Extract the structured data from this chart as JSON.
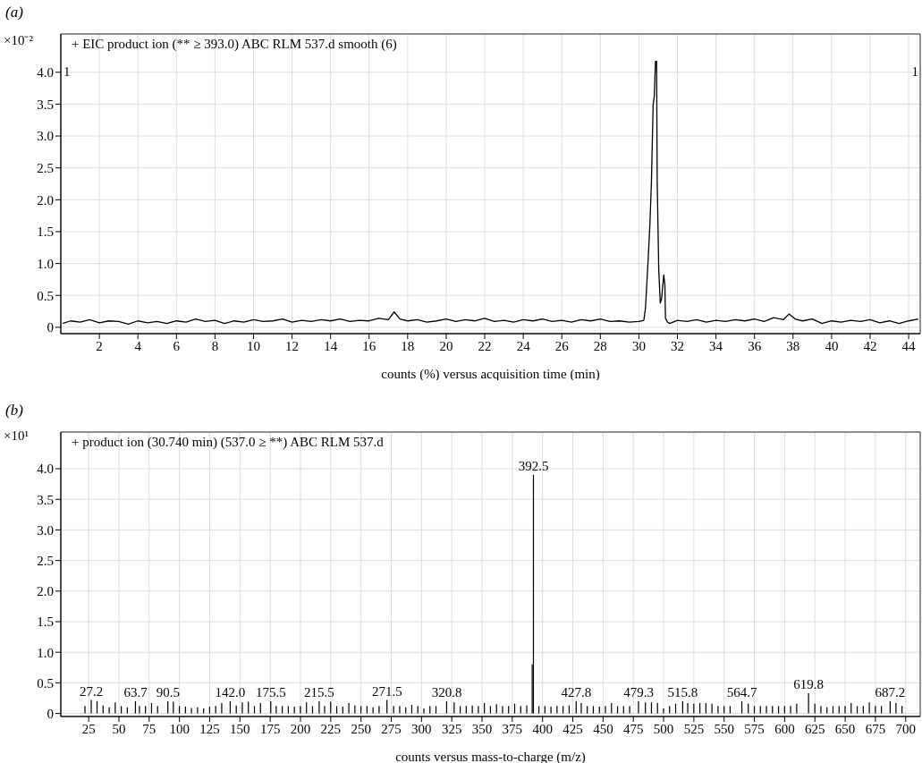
{
  "chart_data": [
    {
      "type": "line",
      "title": "(a)",
      "subtitle": "+ EIC product ion (** ≥ 393.0) ABC RLM 537.d smooth (6)",
      "xlabel": "counts (%) versus acquisition time (min)",
      "ylabel": "×10⁻²",
      "color": "#000000",
      "x": [
        0.1,
        0.5,
        1.0,
        1.5,
        2.0,
        2.5,
        3.0,
        3.5,
        4.0,
        4.5,
        5.0,
        5.5,
        6.0,
        6.5,
        7.0,
        7.5,
        8.0,
        8.5,
        9.0,
        9.5,
        10.0,
        10.5,
        11.0,
        11.5,
        12.0,
        12.5,
        13.0,
        13.5,
        14.0,
        14.5,
        15.0,
        15.5,
        16.0,
        16.5,
        17.0,
        17.3,
        17.6,
        18.0,
        18.5,
        19.0,
        19.5,
        20.0,
        20.5,
        21.0,
        21.5,
        22.0,
        22.5,
        23.0,
        23.5,
        24.0,
        24.5,
        25.0,
        25.5,
        26.0,
        26.5,
        27.0,
        27.5,
        28.0,
        28.5,
        29.0,
        29.5,
        30.0,
        30.26,
        30.34,
        30.46,
        30.57,
        30.65,
        30.74,
        30.8,
        30.86,
        30.92,
        30.95,
        31.03,
        31.11,
        31.18,
        31.29,
        31.35,
        31.38,
        31.49,
        31.6,
        32.0,
        32.5,
        33.0,
        33.5,
        34.0,
        34.5,
        35.0,
        35.5,
        36.0,
        36.5,
        37.0,
        37.5,
        37.8,
        38.1,
        38.5,
        39.0,
        39.5,
        40.0,
        40.5,
        41.0,
        41.5,
        42.0,
        42.5,
        43.0,
        43.5,
        44.0,
        44.5
      ],
      "values": [
        0.06,
        0.1,
        0.08,
        0.12,
        0.07,
        0.1,
        0.09,
        0.05,
        0.1,
        0.07,
        0.09,
        0.06,
        0.1,
        0.08,
        0.13,
        0.09,
        0.11,
        0.06,
        0.1,
        0.08,
        0.12,
        0.09,
        0.1,
        0.13,
        0.08,
        0.11,
        0.09,
        0.12,
        0.1,
        0.13,
        0.09,
        0.11,
        0.1,
        0.14,
        0.12,
        0.24,
        0.13,
        0.1,
        0.12,
        0.08,
        0.1,
        0.13,
        0.09,
        0.12,
        0.1,
        0.14,
        0.09,
        0.11,
        0.08,
        0.12,
        0.1,
        0.13,
        0.09,
        0.11,
        0.08,
        0.12,
        0.1,
        0.13,
        0.09,
        0.1,
        0.08,
        0.09,
        0.11,
        0.3,
        0.94,
        1.6,
        2.27,
        3.49,
        3.63,
        4.17,
        4.17,
        2.32,
        0.91,
        0.38,
        0.45,
        0.82,
        0.67,
        0.14,
        0.08,
        0.06,
        0.11,
        0.09,
        0.12,
        0.08,
        0.11,
        0.09,
        0.12,
        0.1,
        0.13,
        0.09,
        0.15,
        0.12,
        0.21,
        0.13,
        0.1,
        0.13,
        0.06,
        0.1,
        0.08,
        0.11,
        0.09,
        0.12,
        0.07,
        0.1,
        0.06,
        0.1,
        0.13
      ],
      "xlim": [
        0,
        44.6
      ],
      "xticks": [
        2,
        4,
        6,
        8,
        10,
        12,
        14,
        16,
        18,
        20,
        22,
        24,
        26,
        28,
        30,
        32,
        34,
        36,
        38,
        40,
        42,
        44
      ],
      "ylim": [
        -0.1,
        4.6
      ],
      "yticks": [
        0,
        0.5,
        {
          "value": 1,
          "label": "1.0"
        },
        1.5,
        {
          "value": 2,
          "label": "2.0"
        },
        2.5,
        {
          "value": 3,
          "label": "3.0"
        },
        3.5,
        {
          "value": 4,
          "label": "4.0"
        }
      ],
      "grid": true,
      "annotations": [
        "1",
        "1"
      ]
    },
    {
      "type": "bar",
      "title": "(b)",
      "subtitle": "+ product ion (30.740 min) (537.0 ≥ **) ABC RLM 537.d",
      "xlabel": "counts versus mass-to-charge (m/z)",
      "ylabel": "×10¹",
      "color": "#000000",
      "x": [
        22,
        27.2,
        32,
        37,
        42,
        47,
        52,
        57,
        63.7,
        67,
        72,
        77,
        82,
        90.5,
        95,
        100,
        105,
        110,
        115,
        120,
        125,
        130,
        135,
        142.0,
        147,
        152,
        157,
        162,
        167,
        175.5,
        180,
        185,
        190,
        195,
        200,
        205,
        210,
        215.5,
        220,
        225,
        230,
        235,
        240,
        245,
        250,
        255,
        260,
        265,
        271.5,
        277,
        282,
        287,
        292,
        297,
        302,
        307,
        312,
        320.8,
        327,
        332,
        337,
        342,
        347,
        352,
        357,
        362,
        367,
        372,
        377,
        382,
        387,
        391.5,
        392.5,
        397,
        402,
        407,
        412,
        417,
        422,
        427.8,
        432,
        437,
        442,
        447,
        452,
        457,
        462,
        467,
        472,
        479.3,
        485,
        490,
        495,
        500,
        505,
        510,
        515.8,
        520,
        525,
        530,
        535,
        540,
        545,
        550,
        555,
        564.7,
        570,
        575,
        580,
        585,
        590,
        595,
        600,
        605,
        610,
        619.8,
        625,
        630,
        635,
        640,
        645,
        650,
        655,
        660,
        665,
        670,
        675,
        680,
        687.2,
        692,
        697
      ],
      "values": [
        0.12,
        0.22,
        0.2,
        0.13,
        0.1,
        0.18,
        0.12,
        0.1,
        0.2,
        0.12,
        0.12,
        0.17,
        0.12,
        0.2,
        0.19,
        0.12,
        0.11,
        0.09,
        0.1,
        0.08,
        0.11,
        0.12,
        0.17,
        0.2,
        0.13,
        0.18,
        0.19,
        0.12,
        0.17,
        0.2,
        0.12,
        0.12,
        0.12,
        0.11,
        0.12,
        0.18,
        0.12,
        0.2,
        0.12,
        0.19,
        0.12,
        0.11,
        0.17,
        0.13,
        0.12,
        0.12,
        0.1,
        0.12,
        0.22,
        0.12,
        0.12,
        0.1,
        0.14,
        0.12,
        0.08,
        0.12,
        0.12,
        0.2,
        0.18,
        0.12,
        0.12,
        0.13,
        0.12,
        0.17,
        0.12,
        0.15,
        0.12,
        0.12,
        0.16,
        0.12,
        0.13,
        0.8,
        3.9,
        0.12,
        0.12,
        0.11,
        0.12,
        0.12,
        0.13,
        0.2,
        0.17,
        0.12,
        0.12,
        0.11,
        0.12,
        0.17,
        0.12,
        0.12,
        0.12,
        0.2,
        0.18,
        0.18,
        0.17,
        0.08,
        0.12,
        0.16,
        0.2,
        0.17,
        0.16,
        0.17,
        0.17,
        0.16,
        0.12,
        0.12,
        0.12,
        0.2,
        0.16,
        0.12,
        0.12,
        0.12,
        0.12,
        0.12,
        0.12,
        0.12,
        0.16,
        0.33,
        0.16,
        0.12,
        0.1,
        0.12,
        0.12,
        0.12,
        0.17,
        0.12,
        0.12,
        0.18,
        0.12,
        0.12,
        0.2,
        0.17,
        0.12
      ],
      "xlim": [
        2,
        712
      ],
      "xticks": [
        25,
        50,
        75,
        100,
        125,
        150,
        175,
        200,
        225,
        250,
        275,
        300,
        325,
        350,
        375,
        400,
        425,
        450,
        475,
        500,
        525,
        550,
        575,
        600,
        625,
        650,
        675,
        700
      ],
      "ylim": [
        -0.05,
        4.6
      ],
      "yticks": [
        0,
        0.5,
        {
          "value": 1,
          "label": "1.0"
        },
        1.5,
        {
          "value": 2,
          "label": "2.0"
        },
        2.5,
        {
          "value": 3,
          "label": "3.0"
        },
        3.5,
        {
          "value": 4,
          "label": "4.0"
        }
      ],
      "grid": true,
      "annotations": [
        {
          "text": "27.2",
          "x": 27.2,
          "y": 0.22
        },
        {
          "text": "63.7",
          "x": 63.7,
          "y": 0.2
        },
        {
          "text": "90.5",
          "x": 90.5,
          "y": 0.2
        },
        {
          "text": "142.0",
          "x": 142.0,
          "y": 0.2
        },
        {
          "text": "175.5",
          "x": 175.5,
          "y": 0.2
        },
        {
          "text": "215.5",
          "x": 215.5,
          "y": 0.2
        },
        {
          "text": "271.5",
          "x": 271.5,
          "y": 0.22
        },
        {
          "text": "320.8",
          "x": 320.8,
          "y": 0.2
        },
        {
          "text": "392.5",
          "x": 392.5,
          "y": 3.9
        },
        {
          "text": "427.8",
          "x": 427.8,
          "y": 0.2
        },
        {
          "text": "479.3",
          "x": 479.3,
          "y": 0.2
        },
        {
          "text": "515.8",
          "x": 515.8,
          "y": 0.2
        },
        {
          "text": "564.7",
          "x": 564.7,
          "y": 0.2
        },
        {
          "text": "619.8",
          "x": 619.8,
          "y": 0.33
        },
        {
          "text": "687.2",
          "x": 687.2,
          "y": 0.2
        }
      ]
    }
  ]
}
